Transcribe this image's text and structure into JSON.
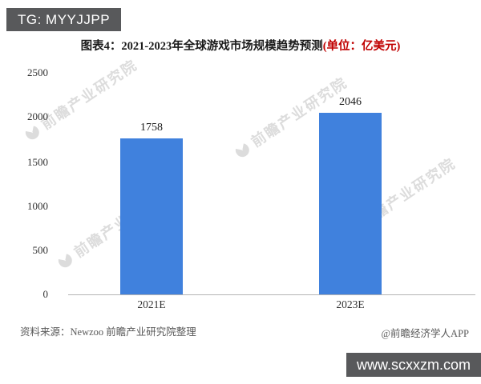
{
  "badges": {
    "top_left": "TG: MYYJJPP",
    "bottom_right": "www.scxxzm.com"
  },
  "title": {
    "main": "图表4：2021-2023年全球游戏市场规模趋势预测",
    "unit": "(单位：亿美元)",
    "unit_color": "#c00000"
  },
  "chart_data": {
    "type": "bar",
    "title": "图表4：2021-2023年全球游戏市场规模趋势预测(单位：亿美元)",
    "categories": [
      "2021E",
      "2023E"
    ],
    "values": [
      1758,
      2046
    ],
    "xlabel": "",
    "ylabel": "",
    "ylim": [
      0,
      2500
    ],
    "yticks": [
      0,
      500,
      1000,
      1500,
      2000,
      2500
    ],
    "grid": false,
    "legend": false,
    "bar_color": "#4081dd",
    "value_labels": [
      "1758",
      "2046"
    ]
  },
  "watermark": {
    "text": "前瞻产业研究院"
  },
  "footer": {
    "source": "资料来源：Newzoo 前瞻产业研究院整理",
    "credit": "@前瞻经济学人APP"
  },
  "colors": {
    "bar": "#4081dd",
    "badge_bg": "#58595b",
    "axis": "#b3b3b3",
    "text": "#1a1a1a",
    "footer_text": "#595959",
    "watermark": "#dcdcdc"
  }
}
